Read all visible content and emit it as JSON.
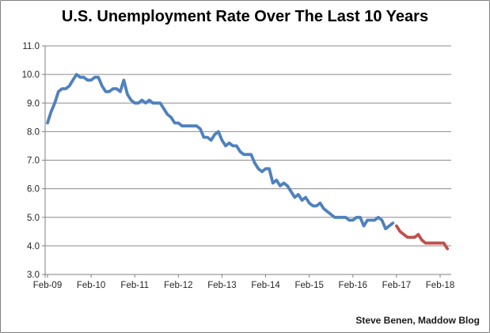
{
  "page": {
    "title": "U.S. Unemployment Rate Over The Last 10 Years",
    "attribution": "Steve Benen, Maddow Blog"
  },
  "colors": {
    "blue_line": "#4F81BD",
    "red_line": "#C0504D",
    "gridline": "#8C8C8C",
    "axis": "#808080",
    "tick_label": "#262626",
    "title_text": "#000000",
    "background": "#FFFFFF",
    "border": "#808080"
  },
  "chart_data": {
    "type": "line",
    "title": "U.S. Unemployment Rate Over The Last 10 Years",
    "xlabel": "",
    "ylabel": "",
    "unit": "percent",
    "ylim": [
      3.0,
      11.0
    ],
    "grid": "horizontal-only",
    "legend": "none",
    "y_tick_labels": [
      "11.0",
      "10.0",
      "9.0",
      "8.0",
      "7.0",
      "6.0",
      "5.0",
      "4.0",
      "3.0"
    ],
    "x_tick_labels": [
      "Feb-09",
      "Feb-10",
      "Feb-11",
      "Feb-12",
      "Feb-13",
      "Feb-14",
      "Feb-15",
      "Feb-16",
      "Feb-17",
      "Feb-18"
    ],
    "months_between_x_ticks": 12,
    "series": [
      {
        "name": "unemployment-rate-blue-segment",
        "color": "#4F81BD",
        "start_label": "Feb-09",
        "end_label": "Jan-17",
        "start_month_offset": 0,
        "values": [
          8.3,
          8.7,
          9.0,
          9.4,
          9.5,
          9.5,
          9.6,
          9.8,
          10.0,
          9.9,
          9.9,
          9.8,
          9.8,
          9.9,
          9.9,
          9.6,
          9.4,
          9.4,
          9.5,
          9.5,
          9.4,
          9.8,
          9.3,
          9.1,
          9.0,
          9.0,
          9.1,
          9.0,
          9.1,
          9.0,
          9.0,
          9.0,
          8.8,
          8.6,
          8.5,
          8.3,
          8.3,
          8.2,
          8.2,
          8.2,
          8.2,
          8.2,
          8.1,
          7.8,
          7.8,
          7.7,
          7.9,
          8.0,
          7.7,
          7.5,
          7.6,
          7.5,
          7.5,
          7.3,
          7.2,
          7.2,
          7.2,
          6.9,
          6.7,
          6.6,
          6.7,
          6.7,
          6.2,
          6.3,
          6.1,
          6.2,
          6.1,
          5.9,
          5.7,
          5.8,
          5.6,
          5.7,
          5.5,
          5.4,
          5.4,
          5.5,
          5.3,
          5.2,
          5.1,
          5.0,
          5.0,
          5.0,
          5.0,
          4.9,
          4.9,
          5.0,
          5.0,
          4.7,
          4.9,
          4.9,
          4.9,
          5.0,
          4.9,
          4.6,
          4.7,
          4.8
        ]
      },
      {
        "name": "unemployment-rate-red-segment",
        "color": "#C0504D",
        "start_label": "Feb-17",
        "end_label": "Apr-18",
        "start_month_offset": 96,
        "values": [
          4.7,
          4.5,
          4.4,
          4.3,
          4.3,
          4.3,
          4.4,
          4.2,
          4.1,
          4.1,
          4.1,
          4.1,
          4.1,
          4.1,
          3.9
        ]
      }
    ]
  }
}
